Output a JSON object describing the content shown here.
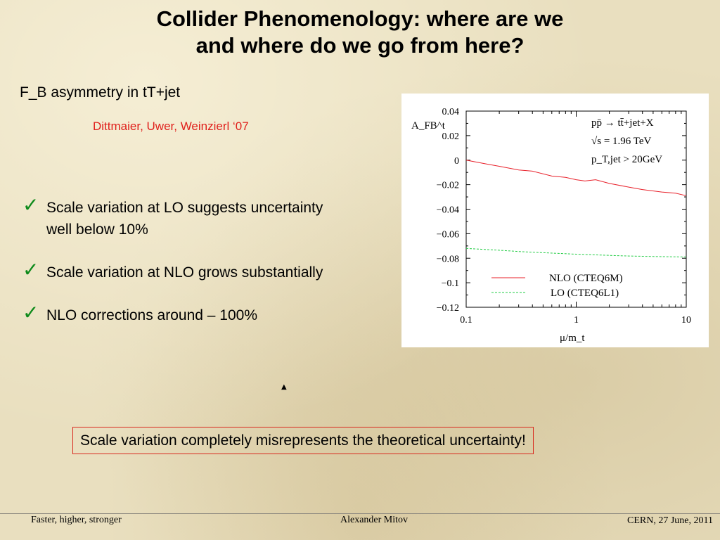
{
  "slide": {
    "title_line1": "Collider Phenomenology: where are we",
    "title_line2": "and where do we go from here?",
    "subtitle": "F_B asymmetry in tT+jet",
    "citation": "Dittmaier, Uwer, Weinzierl  ‘07",
    "check_icon": "✓",
    "bullets": [
      {
        "line1": "Scale variation at LO suggests uncertainty",
        "line2": "well below 10%"
      },
      {
        "line1": "Scale variation at NLO grows substantially"
      },
      {
        "line1": "NLO corrections around – 100%"
      }
    ],
    "marker": "▲",
    "callout": "Scale variation completely misrepresents the theoretical uncertainty!",
    "colors": {
      "accent_red": "#d8291e",
      "check_green": "#0d8a1a"
    }
  },
  "footer": {
    "left": "Faster, higher, stronger",
    "center": "Alexander Mitov",
    "right": "CERN, 27 June, 2011"
  },
  "chart_data": {
    "type": "line",
    "ylabel": "A_FB^t",
    "xlabel": "μ/m_t",
    "xscale": "log",
    "xlim": [
      0.1,
      10
    ],
    "ylim": [
      -0.12,
      0.04
    ],
    "xticks": [
      "0.1",
      "1",
      "10"
    ],
    "yticks": [
      "0.04",
      "0.02",
      "0",
      "−0.02",
      "−0.04",
      "−0.06",
      "−0.08",
      "−0.1",
      "−0.12"
    ],
    "annotations": [
      "pp̄ → tt̄+jet+X",
      "√s = 1.96 TeV",
      "p_T,jet > 20GeV"
    ],
    "legend_position": "bottom-right",
    "series": [
      {
        "name": "NLO (CTEQ6M)",
        "color": "#e8202a",
        "style": "solid",
        "x": [
          0.1,
          0.15,
          0.2,
          0.3,
          0.4,
          0.6,
          0.8,
          1.0,
          1.2,
          1.5,
          2.0,
          3.0,
          4.0,
          6.0,
          8.0,
          10.0
        ],
        "y": [
          0.0,
          -0.003,
          -0.005,
          -0.008,
          -0.009,
          -0.013,
          -0.014,
          -0.016,
          -0.017,
          -0.016,
          -0.019,
          -0.022,
          -0.024,
          -0.026,
          -0.027,
          -0.029
        ]
      },
      {
        "name": "LO (CTEQ6L1)",
        "color": "#22cc44",
        "style": "dashed",
        "x": [
          0.1,
          0.2,
          0.3,
          0.5,
          1.0,
          2.0,
          3.0,
          5.0,
          10.0
        ],
        "y": [
          -0.072,
          -0.0735,
          -0.0745,
          -0.0755,
          -0.0767,
          -0.0777,
          -0.0782,
          -0.0786,
          -0.079
        ]
      }
    ]
  }
}
